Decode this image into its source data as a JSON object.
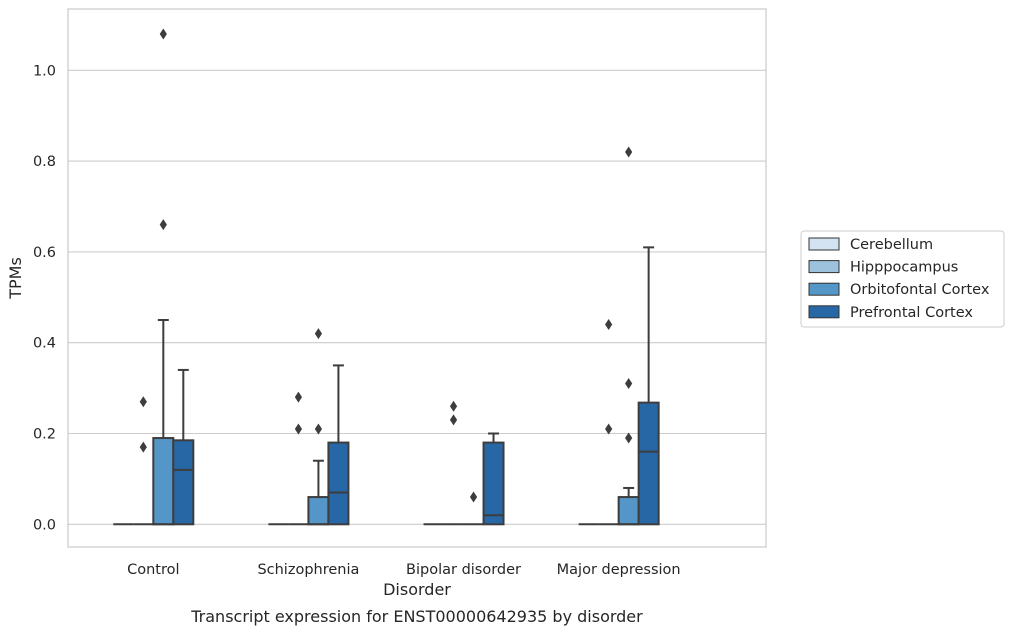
{
  "chart_data": {
    "type": "box",
    "title": "",
    "caption": "Transcript expression for ENST00000642935 by disorder",
    "xlabel": "Disorder",
    "ylabel": "TPMs",
    "ylim": [
      -0.05,
      1.135
    ],
    "yticks": [
      0.0,
      0.2,
      0.4,
      0.6,
      0.8,
      1.0
    ],
    "ytick_labels": [
      "0.0",
      "0.2",
      "0.4",
      "0.6",
      "0.8",
      "1.0"
    ],
    "grid": "horizontal",
    "legend_position": "right",
    "categories": [
      "Control",
      "Schizophrenia",
      "Bipolar disorder",
      "Major depression"
    ],
    "series": [
      {
        "name": "Cerebellum",
        "color": "#d3e3f2",
        "boxes": [
          {
            "q1": 0,
            "median": 0,
            "q3": 0,
            "whisker_low": 0,
            "whisker_high": 0,
            "outliers": []
          },
          {
            "q1": 0,
            "median": 0,
            "q3": 0,
            "whisker_low": 0,
            "whisker_high": 0,
            "outliers": []
          },
          {
            "q1": 0,
            "median": 0,
            "q3": 0,
            "whisker_low": 0,
            "whisker_high": 0,
            "outliers": []
          },
          {
            "q1": 0,
            "median": 0,
            "q3": 0,
            "whisker_low": 0,
            "whisker_high": 0,
            "outliers": []
          }
        ]
      },
      {
        "name": "Hipppocampus",
        "color": "#9cc2dd",
        "boxes": [
          {
            "q1": 0,
            "median": 0,
            "q3": 0,
            "whisker_low": 0,
            "whisker_high": 0,
            "outliers": [
              0.17,
              0.27
            ]
          },
          {
            "q1": 0,
            "median": 0,
            "q3": 0,
            "whisker_low": 0,
            "whisker_high": 0,
            "outliers": [
              0.21,
              0.28
            ]
          },
          {
            "q1": 0,
            "median": 0,
            "q3": 0,
            "whisker_low": 0,
            "whisker_high": 0,
            "outliers": [
              0.23,
              0.26
            ]
          },
          {
            "q1": 0,
            "median": 0,
            "q3": 0,
            "whisker_low": 0,
            "whisker_high": 0,
            "outliers": [
              0.21,
              0.44
            ]
          }
        ]
      },
      {
        "name": "Orbitofontal Cortex",
        "color": "#5596c8",
        "boxes": [
          {
            "q1": 0,
            "median": 0,
            "q3": 0.19,
            "whisker_low": 0,
            "whisker_high": 0.45,
            "outliers": [
              0.66,
              1.08
            ]
          },
          {
            "q1": 0,
            "median": 0,
            "q3": 0.06,
            "whisker_low": 0,
            "whisker_high": 0.14,
            "outliers": [
              0.21,
              0.42
            ]
          },
          {
            "q1": 0,
            "median": 0,
            "q3": 0,
            "whisker_low": 0,
            "whisker_high": 0,
            "outliers": [
              0.06
            ]
          },
          {
            "q1": 0,
            "median": 0,
            "q3": 0.06,
            "whisker_low": 0,
            "whisker_high": 0.08,
            "outliers": [
              0.19,
              0.31,
              0.82
            ]
          }
        ]
      },
      {
        "name": "Prefrontal Cortex",
        "color": "#2867a6",
        "boxes": [
          {
            "q1": 0,
            "median": 0.12,
            "q3": 0.185,
            "whisker_low": 0,
            "whisker_high": 0.34,
            "outliers": []
          },
          {
            "q1": 0,
            "median": 0.07,
            "q3": 0.18,
            "whisker_low": 0,
            "whisker_high": 0.35,
            "outliers": []
          },
          {
            "q1": 0,
            "median": 0.02,
            "q3": 0.18,
            "whisker_low": 0,
            "whisker_high": 0.2,
            "outliers": []
          },
          {
            "q1": 0,
            "median": 0.16,
            "q3": 0.268,
            "whisker_low": 0,
            "whisker_high": 0.61,
            "outliers": []
          }
        ]
      }
    ]
  }
}
